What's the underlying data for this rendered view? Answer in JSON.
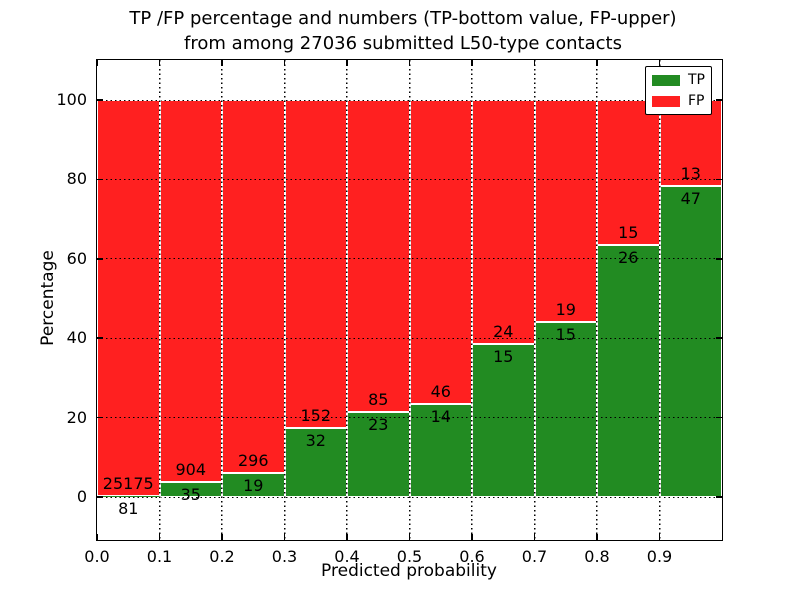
{
  "chart_data": {
    "type": "bar",
    "stacked": true,
    "normalized_to_percent": true,
    "title_line1": "TP /FP percentage and numbers (TP-bottom value, FP-upper)",
    "title_line2": "from among 27036 submitted L50-type contacts",
    "xlabel": "Predicted probability",
    "ylabel": "Percentage",
    "x_tick_labels": [
      "0.0",
      "0.1",
      "0.2",
      "0.3",
      "0.4",
      "0.5",
      "0.6",
      "0.7",
      "0.8",
      "0.9"
    ],
    "y_ticks": [
      0,
      20,
      40,
      60,
      80,
      100
    ],
    "xlim": [
      0.0,
      1.0
    ],
    "ylim": [
      -10.8,
      110.1
    ],
    "bin_width": 0.1,
    "grid": "dotted black, on",
    "categories": [
      "0.0-0.1",
      "0.1-0.2",
      "0.2-0.3",
      "0.3-0.4",
      "0.4-0.5",
      "0.5-0.6",
      "0.6-0.7",
      "0.7-0.8",
      "0.8-0.9",
      "0.9-1.0"
    ],
    "series": [
      {
        "name": "TP",
        "counts": [
          81,
          35,
          19,
          32,
          23,
          14,
          15,
          15,
          26,
          47
        ],
        "pct": [
          0.32,
          3.73,
          6.03,
          17.39,
          21.3,
          23.33,
          38.46,
          44.12,
          63.41,
          78.33
        ]
      },
      {
        "name": "FP",
        "counts": [
          25175,
          904,
          296,
          152,
          85,
          46,
          24,
          19,
          15,
          13
        ],
        "pct": [
          99.68,
          96.27,
          93.97,
          82.61,
          78.7,
          76.67,
          61.54,
          55.88,
          36.59,
          21.67
        ]
      }
    ],
    "legend": {
      "position": "upper right",
      "entries": [
        {
          "label": "TP",
          "color": "#228b22"
        },
        {
          "label": "FP",
          "color": "#ff2020"
        }
      ]
    },
    "colors": {
      "tp": "#228b22",
      "fp": "#ff2020",
      "grid": "#000000",
      "background": "#ffffff",
      "bar_edge": "#ffffff"
    }
  }
}
